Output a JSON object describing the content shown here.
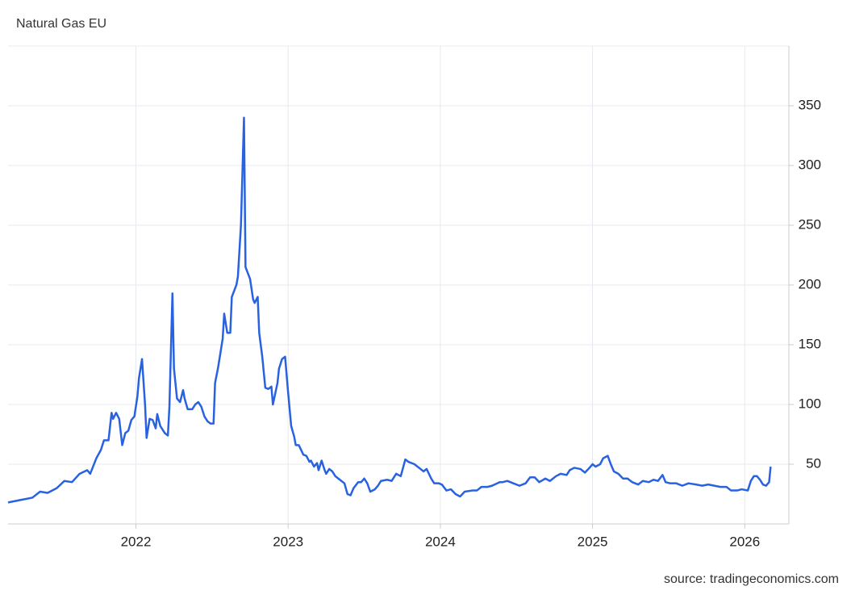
{
  "chart_data": {
    "type": "line",
    "title": "Natural Gas EU",
    "source": "source: tradingeconomics.com",
    "color": "#2962e0",
    "grid": true,
    "xlim": [
      2021.16,
      2026.29
    ],
    "xticks": [
      2022,
      2023,
      2024,
      2025,
      2026
    ],
    "ylim": [
      0,
      400
    ],
    "yticks": [
      50,
      100,
      150,
      200,
      250,
      300,
      350
    ],
    "x": [
      2021.16,
      2021.24,
      2021.32,
      2021.37,
      2021.42,
      2021.48,
      2021.53,
      2021.58,
      2021.63,
      2021.68,
      2021.7,
      2021.74,
      2021.77,
      2021.79,
      2021.82,
      2021.84,
      2021.85,
      2021.87,
      2021.89,
      2021.91,
      2021.93,
      2021.95,
      2021.97,
      2021.99,
      2022.01,
      2022.02,
      2022.04,
      2022.06,
      2022.07,
      2022.09,
      2022.11,
      2022.13,
      2022.14,
      2022.16,
      2022.19,
      2022.21,
      2022.22,
      2022.24,
      2022.25,
      2022.27,
      2022.29,
      2022.31,
      2022.32,
      2022.34,
      2022.37,
      2022.39,
      2022.41,
      2022.43,
      2022.45,
      2022.47,
      2022.49,
      2022.51,
      2022.52,
      2022.54,
      2022.57,
      2022.58,
      2022.6,
      2022.62,
      2022.63,
      2022.66,
      2022.67,
      2022.69,
      2022.71,
      2022.72,
      2022.75,
      2022.77,
      2022.78,
      2022.8,
      2022.81,
      2022.83,
      2022.85,
      2022.87,
      2022.89,
      2022.9,
      2022.93,
      2022.94,
      2022.96,
      2022.98,
      2023.0,
      2023.02,
      2023.04,
      2023.05,
      2023.07,
      2023.1,
      2023.12,
      2023.14,
      2023.15,
      2023.17,
      2023.19,
      2023.2,
      2023.22,
      2023.24,
      2023.25,
      2023.27,
      2023.29,
      2023.31,
      2023.34,
      2023.37,
      2023.39,
      2023.41,
      2023.43,
      2023.46,
      2023.48,
      2023.5,
      2023.52,
      2023.54,
      2023.57,
      2023.59,
      2023.61,
      2023.65,
      2023.68,
      2023.71,
      2023.74,
      2023.77,
      2023.79,
      2023.83,
      2023.86,
      2023.89,
      2023.91,
      2023.94,
      2023.96,
      2023.99,
      2024.01,
      2024.04,
      2024.07,
      2024.1,
      2024.13,
      2024.16,
      2024.21,
      2024.24,
      2024.27,
      2024.31,
      2024.34,
      2024.39,
      2024.41,
      2024.44,
      2024.48,
      2024.52,
      2024.56,
      2024.59,
      2024.62,
      2024.65,
      2024.69,
      2024.72,
      2024.76,
      2024.79,
      2024.83,
      2024.85,
      2024.88,
      2024.92,
      2024.95,
      2024.98,
      2025.0,
      2025.02,
      2025.05,
      2025.07,
      2025.1,
      2025.12,
      2025.14,
      2025.17,
      2025.2,
      2025.23,
      2025.26,
      2025.3,
      2025.33,
      2025.37,
      2025.4,
      2025.43,
      2025.46,
      2025.48,
      2025.51,
      2025.55,
      2025.59,
      2025.63,
      2025.68,
      2025.72,
      2025.76,
      2025.8,
      2025.84,
      2025.88,
      2025.91,
      2025.95,
      2025.98,
      2026.02,
      2026.04,
      2026.06,
      2026.08,
      2026.1,
      2026.12,
      2026.14,
      2026.16,
      2026.17
    ],
    "values": [
      18,
      20,
      22,
      27,
      26,
      30,
      36,
      35,
      42,
      45,
      42,
      55,
      62,
      70,
      70,
      93,
      88,
      93,
      88,
      66,
      76,
      78,
      87,
      90,
      107,
      122,
      138,
      100,
      72,
      88,
      87,
      80,
      92,
      82,
      76,
      74,
      98,
      193,
      130,
      105,
      102,
      112,
      105,
      96,
      96,
      100,
      102,
      98,
      90,
      86,
      84,
      84,
      118,
      131,
      155,
      176,
      160,
      160,
      190,
      200,
      207,
      250,
      340,
      215,
      205,
      188,
      185,
      190,
      160,
      140,
      114,
      113,
      115,
      100,
      118,
      130,
      138,
      140,
      110,
      82,
      73,
      66,
      66,
      58,
      57,
      52,
      53,
      48,
      51,
      45,
      53,
      45,
      42,
      46,
      44,
      40,
      37,
      34,
      25,
      24,
      30,
      35,
      35,
      38,
      34,
      27,
      29,
      32,
      36,
      37,
      36,
      42,
      40,
      54,
      52,
      50,
      47,
      44,
      46,
      38,
      34,
      34,
      33,
      28,
      29,
      25,
      23,
      27,
      28,
      28,
      31,
      31,
      32,
      35,
      35,
      36,
      34,
      32,
      34,
      39,
      39,
      35,
      38,
      36,
      40,
      42,
      41,
      45,
      47,
      46,
      43,
      47,
      50,
      48,
      50,
      55,
      57,
      50,
      44,
      42,
      38,
      38,
      35,
      33,
      36,
      35,
      37,
      36,
      41,
      35,
      34,
      34,
      32,
      34,
      33,
      32,
      33,
      32,
      31,
      31,
      28,
      28,
      29,
      28,
      36,
      40,
      40,
      37,
      33,
      32,
      35,
      48
    ]
  }
}
